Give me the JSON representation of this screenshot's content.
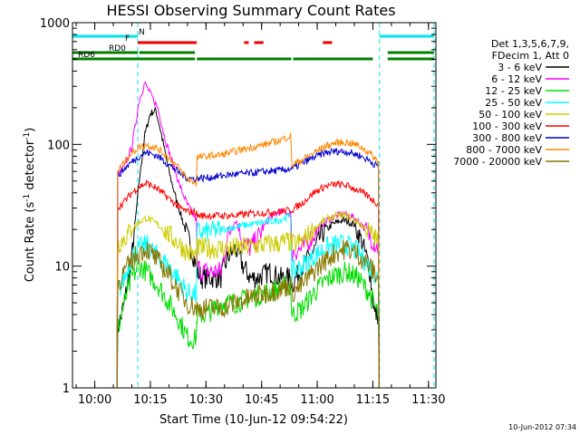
{
  "chart_data": {
    "type": "line",
    "title": "HESSI Observing Summary Count Rates",
    "xlabel": "Start Time (10-Jun-12 09:54:22)",
    "ylabel_main": "Count Rate (s",
    "ylabel_sup": "-1",
    "ylabel_mid": " detector",
    "ylabel_sup2": "-1",
    "ylabel_end": ")",
    "timestamp": "10-Jun-2012 07:34",
    "y_scale": "log",
    "xlim_minutes_after_0954": [
      0,
      98
    ],
    "ylim": [
      1,
      1000
    ],
    "x_ticks": [
      {
        "label": "10:00",
        "min": 6
      },
      {
        "label": "10:15",
        "min": 21
      },
      {
        "label": "10:30",
        "min": 36
      },
      {
        "label": "10:45",
        "min": 51
      },
      {
        "label": "11:00",
        "min": 66
      },
      {
        "label": "11:15",
        "min": 81
      },
      {
        "label": "11:30",
        "min": 96
      }
    ],
    "y_ticks": [
      {
        "label": "1",
        "value": 1
      },
      {
        "label": "10",
        "value": 10
      },
      {
        "label": "100",
        "value": 100
      },
      {
        "label": "1000",
        "value": 1000
      }
    ],
    "legend_header": [
      "Det 1,3,5,6,7,9,",
      "FDecim 1, Att 0"
    ],
    "legend_position": "right-outside",
    "night_boundaries_min": [
      0,
      17.6,
      82.8,
      97.5
    ],
    "flags": [
      {
        "name": "N",
        "color": "#00e5e5",
        "segments": [
          [
            0,
            17.6
          ],
          [
            82.8,
            97.5
          ]
        ]
      },
      {
        "name": "F",
        "color": "#ee0000",
        "segments": [
          [
            17.6,
            33.5
          ],
          [
            46.3,
            47.5
          ],
          [
            49.0,
            51.5
          ],
          [
            67.5,
            70.0
          ]
        ]
      },
      {
        "name": "RD0",
        "color": "#008000",
        "segments": [
          [
            0,
            17.6
          ],
          [
            18.0,
            33.0
          ],
          [
            85.0,
            97.5
          ]
        ]
      },
      {
        "name": "RD6",
        "color": "#008000",
        "segments": [
          [
            0,
            33.0
          ],
          [
            33.5,
            59.0
          ],
          [
            59.5,
            81.0
          ],
          [
            85.0,
            97.5
          ]
        ]
      }
    ],
    "series": [
      {
        "name": "3 - 6 keV",
        "color": "#000000",
        "points": [
          [
            12,
            1
          ],
          [
            12.2,
            3
          ],
          [
            14,
            5
          ],
          [
            16,
            12
          ],
          [
            18,
            50
          ],
          [
            19.5,
            120
          ],
          [
            21,
            180
          ],
          [
            22.5,
            190
          ],
          [
            24,
            120
          ],
          [
            26,
            60
          ],
          [
            28,
            35
          ],
          [
            30,
            22
          ],
          [
            32,
            14
          ],
          [
            33.4,
            10
          ],
          [
            33.6,
            9
          ],
          [
            35,
            8
          ],
          [
            40,
            8
          ],
          [
            42,
            12
          ],
          [
            44,
            14
          ],
          [
            46,
            10
          ],
          [
            48,
            8
          ],
          [
            50,
            8
          ],
          [
            53,
            9
          ],
          [
            56,
            8
          ],
          [
            58.8,
            8
          ],
          [
            59.2,
            7
          ],
          [
            62,
            10
          ],
          [
            65,
            13
          ],
          [
            67,
            18
          ],
          [
            70,
            22
          ],
          [
            73,
            24
          ],
          [
            76,
            22
          ],
          [
            78,
            16
          ],
          [
            80,
            10
          ],
          [
            81.5,
            4
          ],
          [
            82.5,
            4
          ],
          [
            82.7,
            1
          ]
        ]
      },
      {
        "name": "6 - 12 keV",
        "color": "#ff00ff",
        "points": [
          [
            12,
            1
          ],
          [
            12.2,
            55
          ],
          [
            14,
            65
          ],
          [
            16,
            95
          ],
          [
            18,
            230
          ],
          [
            19.5,
            320
          ],
          [
            21,
            260
          ],
          [
            23,
            200
          ],
          [
            25,
            110
          ],
          [
            27,
            70
          ],
          [
            29,
            45
          ],
          [
            31,
            32
          ],
          [
            33.4,
            24
          ],
          [
            33.6,
            10
          ],
          [
            35,
            9
          ],
          [
            40,
            9
          ],
          [
            42,
            18
          ],
          [
            44,
            24
          ],
          [
            46,
            16
          ],
          [
            48,
            14
          ],
          [
            50,
            17
          ],
          [
            53,
            25
          ],
          [
            56,
            28
          ],
          [
            58.8,
            27
          ],
          [
            59.2,
            13
          ],
          [
            62,
            14
          ],
          [
            65,
            18
          ],
          [
            67,
            22
          ],
          [
            70,
            25
          ],
          [
            73,
            27
          ],
          [
            76,
            25
          ],
          [
            78,
            22
          ],
          [
            80,
            18
          ],
          [
            82.5,
            14
          ],
          [
            82.7,
            1
          ]
        ]
      },
      {
        "name": "12 - 25 keV",
        "color": "#00dd00",
        "points": [
          [
            12,
            1
          ],
          [
            12.2,
            3
          ],
          [
            14,
            5
          ],
          [
            16,
            8
          ],
          [
            18,
            10
          ],
          [
            20,
            9
          ],
          [
            23,
            7
          ],
          [
            26,
            5
          ],
          [
            29,
            3.5
          ],
          [
            31,
            2.6
          ],
          [
            33,
            2.5
          ],
          [
            33.4,
            2.7
          ],
          [
            33.6,
            4
          ],
          [
            36,
            4
          ],
          [
            40,
            5
          ],
          [
            44,
            5
          ],
          [
            48,
            5.5
          ],
          [
            52,
            6
          ],
          [
            56,
            6.5
          ],
          [
            58.8,
            7
          ],
          [
            59.2,
            4
          ],
          [
            62,
            4.5
          ],
          [
            65,
            6
          ],
          [
            68,
            7.5
          ],
          [
            71,
            8.5
          ],
          [
            74,
            9
          ],
          [
            77,
            8
          ],
          [
            80,
            6
          ],
          [
            82.5,
            4
          ],
          [
            82.7,
            1
          ]
        ]
      },
      {
        "name": "25 - 50 keV",
        "color": "#00ffff",
        "points": [
          [
            12,
            1
          ],
          [
            12.2,
            6
          ],
          [
            14,
            8
          ],
          [
            16,
            12
          ],
          [
            18,
            14
          ],
          [
            20,
            15
          ],
          [
            23,
            12
          ],
          [
            26,
            10
          ],
          [
            29,
            7.5
          ],
          [
            31,
            6
          ],
          [
            33.4,
            5.8
          ],
          [
            33.6,
            19
          ],
          [
            36,
            19
          ],
          [
            40,
            20
          ],
          [
            44,
            21
          ],
          [
            48,
            22
          ],
          [
            52,
            23
          ],
          [
            56,
            24
          ],
          [
            58.8,
            26
          ],
          [
            59.2,
            9
          ],
          [
            62,
            10
          ],
          [
            65,
            12
          ],
          [
            68,
            14
          ],
          [
            71,
            15
          ],
          [
            74,
            15
          ],
          [
            77,
            13
          ],
          [
            80,
            10
          ],
          [
            82.5,
            8
          ],
          [
            82.7,
            1
          ]
        ]
      },
      {
        "name": "50 - 100 keV",
        "color": "#cccc00",
        "points": [
          [
            12,
            1
          ],
          [
            12.2,
            15
          ],
          [
            14,
            17
          ],
          [
            16,
            20
          ],
          [
            18,
            23
          ],
          [
            20,
            25
          ],
          [
            23,
            22
          ],
          [
            26,
            18
          ],
          [
            29,
            15
          ],
          [
            31,
            13
          ],
          [
            33.4,
            12
          ],
          [
            33.6,
            14
          ],
          [
            36,
            14
          ],
          [
            40,
            14
          ],
          [
            44,
            14
          ],
          [
            48,
            14.5
          ],
          [
            52,
            15
          ],
          [
            56,
            15.5
          ],
          [
            58.8,
            16
          ],
          [
            59.2,
            15
          ],
          [
            62,
            16
          ],
          [
            65,
            20
          ],
          [
            68,
            24
          ],
          [
            71,
            26
          ],
          [
            74,
            26
          ],
          [
            77,
            23
          ],
          [
            80,
            19
          ],
          [
            82.5,
            16
          ],
          [
            82.7,
            1
          ]
        ]
      },
      {
        "name": "100 - 300 keV",
        "color": "#ff0000",
        "points": [
          [
            12,
            1
          ],
          [
            12.2,
            30
          ],
          [
            14,
            34
          ],
          [
            16,
            40
          ],
          [
            18,
            45
          ],
          [
            20,
            48
          ],
          [
            23,
            43
          ],
          [
            26,
            36
          ],
          [
            29,
            30
          ],
          [
            31,
            28
          ],
          [
            33.4,
            28
          ],
          [
            33.6,
            26
          ],
          [
            36,
            26
          ],
          [
            40,
            26
          ],
          [
            44,
            26
          ],
          [
            48,
            27
          ],
          [
            52,
            27.5
          ],
          [
            56,
            28
          ],
          [
            58.8,
            29
          ],
          [
            59.2,
            29
          ],
          [
            62,
            33
          ],
          [
            65,
            40
          ],
          [
            68,
            45
          ],
          [
            71,
            47
          ],
          [
            74,
            46
          ],
          [
            77,
            42
          ],
          [
            80,
            37
          ],
          [
            82.5,
            32
          ],
          [
            82.7,
            1
          ]
        ]
      },
      {
        "name": "300 - 800 keV",
        "color": "#0000cc",
        "points": [
          [
            12,
            1
          ],
          [
            12.2,
            55
          ],
          [
            14,
            63
          ],
          [
            16,
            72
          ],
          [
            18,
            80
          ],
          [
            20,
            86
          ],
          [
            23,
            80
          ],
          [
            26,
            68
          ],
          [
            29,
            58
          ],
          [
            31,
            53
          ],
          [
            33.4,
            52
          ],
          [
            33.6,
            53
          ],
          [
            36,
            53
          ],
          [
            40,
            55
          ],
          [
            44,
            57
          ],
          [
            48,
            58
          ],
          [
            52,
            60
          ],
          [
            56,
            61
          ],
          [
            58.8,
            63
          ],
          [
            59.2,
            63
          ],
          [
            62,
            70
          ],
          [
            65,
            78
          ],
          [
            68,
            85
          ],
          [
            71,
            88
          ],
          [
            74,
            87
          ],
          [
            77,
            82
          ],
          [
            80,
            74
          ],
          [
            82.5,
            65
          ],
          [
            82.7,
            1
          ]
        ]
      },
      {
        "name": "800 - 7000 keV",
        "color": "#ff8800",
        "points": [
          [
            12,
            1
          ],
          [
            12.2,
            60
          ],
          [
            14,
            72
          ],
          [
            16,
            85
          ],
          [
            18,
            95
          ],
          [
            20,
            100
          ],
          [
            23,
            92
          ],
          [
            26,
            78
          ],
          [
            29,
            62
          ],
          [
            31,
            52
          ],
          [
            33.4,
            48
          ],
          [
            33.6,
            78
          ],
          [
            36,
            80
          ],
          [
            40,
            82
          ],
          [
            44,
            88
          ],
          [
            48,
            94
          ],
          [
            52,
            100
          ],
          [
            56,
            108
          ],
          [
            58.8,
            118
          ],
          [
            59.2,
            68
          ],
          [
            62,
            75
          ],
          [
            65,
            85
          ],
          [
            68,
            96
          ],
          [
            71,
            103
          ],
          [
            74,
            104
          ],
          [
            77,
            98
          ],
          [
            80,
            86
          ],
          [
            82.5,
            72
          ],
          [
            82.7,
            1
          ]
        ]
      },
      {
        "name": "7000 - 20000 keV",
        "color": "#887700",
        "points": [
          [
            12,
            1
          ],
          [
            12.2,
            7
          ],
          [
            14,
            9
          ],
          [
            16,
            11
          ],
          [
            18,
            13
          ],
          [
            20,
            14
          ],
          [
            23,
            11
          ],
          [
            26,
            8.5
          ],
          [
            29,
            6
          ],
          [
            31,
            5
          ],
          [
            33.4,
            4.5
          ],
          [
            33.6,
            4.5
          ],
          [
            36,
            4.5
          ],
          [
            40,
            4.5
          ],
          [
            44,
            5
          ],
          [
            48,
            5.5
          ],
          [
            52,
            6
          ],
          [
            56,
            6.5
          ],
          [
            58.8,
            7
          ],
          [
            59.2,
            6
          ],
          [
            62,
            7
          ],
          [
            65,
            9
          ],
          [
            68,
            11
          ],
          [
            71,
            13
          ],
          [
            74,
            14
          ],
          [
            77,
            12.5
          ],
          [
            80,
            10
          ],
          [
            82.5,
            8
          ],
          [
            82.7,
            1
          ]
        ]
      }
    ]
  }
}
